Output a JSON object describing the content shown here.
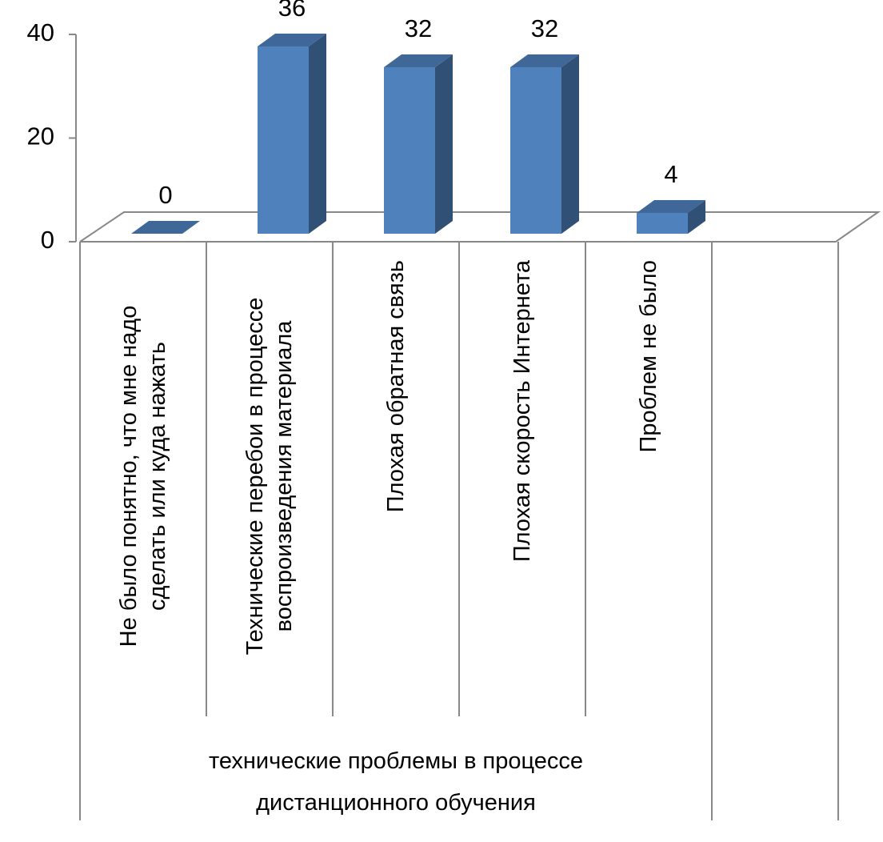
{
  "chart_data": {
    "type": "bar3d",
    "categories": [
      "Не было понятно, что мне надо сделать или куда нажать",
      "Технические перебои в процессе воспроизведения материала",
      "Плохая обратная связь",
      "Плохая скорость Интернета",
      "Проблем не было",
      null
    ],
    "category_group": "технические проблемы в процессе дистанционного обучения",
    "values": [
      0,
      36,
      32,
      32,
      4,
      null
    ],
    "color": "#4f81bd",
    "ylim": [
      0,
      40
    ],
    "yticks": [
      0,
      20,
      40
    ],
    "grid": false
  }
}
